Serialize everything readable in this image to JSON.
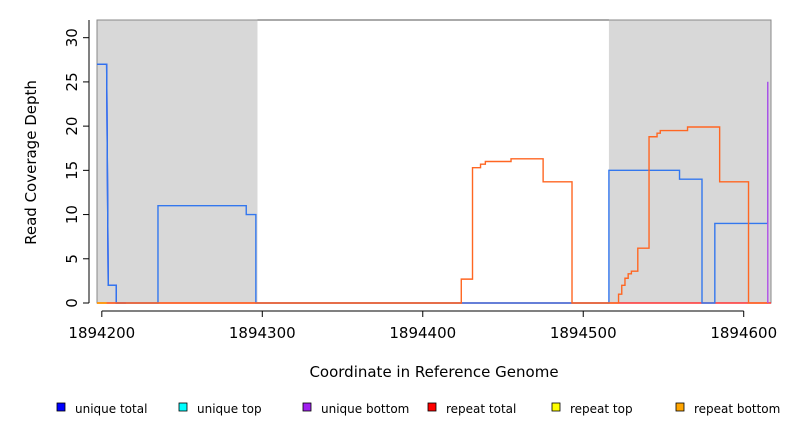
{
  "chart_data": {
    "type": "line",
    "xlabel": "Coordinate in Reference Genome",
    "ylabel": "Read Coverage Depth",
    "xlim": [
      1894197,
      1894617
    ],
    "ylim": [
      0,
      32
    ],
    "x_ticks": [
      1894200,
      1894300,
      1894400,
      1894500,
      1894600
    ],
    "x_tick_labels": [
      "1894200",
      "1894300",
      "1894400",
      "1894500",
      "1894600"
    ],
    "y_ticks": [
      0,
      5,
      10,
      15,
      20,
      25,
      30
    ],
    "y_tick_labels": [
      "0",
      "5",
      "10",
      "15",
      "20",
      "25",
      "30"
    ],
    "shaded_regions": [
      {
        "x_start": 1894197,
        "x_end": 1894297
      },
      {
        "x_start": 1894516,
        "x_end": 1894617
      }
    ],
    "series": [
      {
        "name": "unique total",
        "color": "#0000ff",
        "style": "step",
        "points": [
          [
            1894197,
            27
          ],
          [
            1894201,
            27
          ],
          [
            1894203,
            27
          ],
          [
            1894204,
            2
          ],
          [
            1894209,
            2
          ],
          [
            1894209,
            0
          ],
          [
            1894215,
            0
          ]
        ]
      },
      {
        "name": "repeat total",
        "color": "#ff3333",
        "style": "step",
        "points": [
          [
            1894197,
            0
          ],
          [
            1894617,
            0
          ]
        ]
      },
      {
        "name": "",
        "color": "#3377ee",
        "style": "step",
        "points": [
          [
            1894197,
            27
          ],
          [
            1894203,
            27
          ],
          [
            1894204,
            2
          ],
          [
            1894209,
            2
          ],
          [
            1894209,
            0
          ],
          [
            1894235,
            0
          ],
          [
            1894235,
            11
          ],
          [
            1894290,
            11
          ],
          [
            1894290,
            10
          ],
          [
            1894296,
            10
          ],
          [
            1894296,
            0
          ],
          [
            1894516,
            0
          ],
          [
            1894516,
            15
          ],
          [
            1894560,
            15
          ],
          [
            1894560,
            14
          ],
          [
            1894574,
            14
          ],
          [
            1894574,
            0
          ],
          [
            1894582,
            0
          ],
          [
            1894582,
            9
          ],
          [
            1894615,
            9
          ],
          [
            1894615,
            25
          ]
        ]
      },
      {
        "name": "",
        "color": "#ff6622",
        "style": "step",
        "points": [
          [
            1894197,
            0
          ],
          [
            1894424,
            0
          ],
          [
            1894424,
            2.7
          ],
          [
            1894431,
            2.7
          ],
          [
            1894431,
            15.3
          ],
          [
            1894436,
            15.3
          ],
          [
            1894436,
            15.7
          ],
          [
            1894439,
            15.7
          ],
          [
            1894439,
            16
          ],
          [
            1894455,
            16
          ],
          [
            1894455,
            16.3
          ],
          [
            1894475,
            16.3
          ],
          [
            1894475,
            13.7
          ],
          [
            1894493,
            13.7
          ],
          [
            1894493,
            0
          ],
          [
            1894522,
            0
          ],
          [
            1894522,
            1
          ],
          [
            1894524,
            1
          ],
          [
            1894524,
            2
          ],
          [
            1894526,
            2
          ],
          [
            1894526,
            2.8
          ],
          [
            1894528,
            2.8
          ],
          [
            1894528,
            3.3
          ],
          [
            1894530,
            3.3
          ],
          [
            1894530,
            3.6
          ],
          [
            1894534,
            3.6
          ],
          [
            1894534,
            6.2
          ],
          [
            1894541,
            6.2
          ],
          [
            1894541,
            18.8
          ],
          [
            1894546,
            18.8
          ],
          [
            1894546,
            19.2
          ],
          [
            1894548,
            19.2
          ],
          [
            1894548,
            19.5
          ],
          [
            1894565,
            19.5
          ],
          [
            1894565,
            19.9
          ],
          [
            1894585,
            19.9
          ],
          [
            1894585,
            13.7
          ],
          [
            1894603,
            13.7
          ],
          [
            1894603,
            0
          ],
          [
            1894615,
            0
          ]
        ]
      },
      {
        "name": "unique bottom",
        "color": "#b050e8",
        "style": "step",
        "points": [
          [
            1894615,
            0
          ],
          [
            1894615,
            25
          ]
        ]
      },
      {
        "name": "repeat bottom",
        "color": "#ffaa00",
        "style": "step",
        "points": [
          [
            1894197,
            0
          ],
          [
            1894203,
            0
          ]
        ]
      }
    ],
    "legend": {
      "placement": "bottom",
      "items": [
        {
          "label": "unique total",
          "color": "#0000ff"
        },
        {
          "label": "unique top",
          "color": "#00ffff"
        },
        {
          "label": "unique bottom",
          "color": "#a020f0"
        },
        {
          "label": "repeat total",
          "color": "#ff0000"
        },
        {
          "label": "repeat top",
          "color": "#ffff00"
        },
        {
          "label": "repeat bottom",
          "color": "#ffa500"
        }
      ]
    }
  }
}
